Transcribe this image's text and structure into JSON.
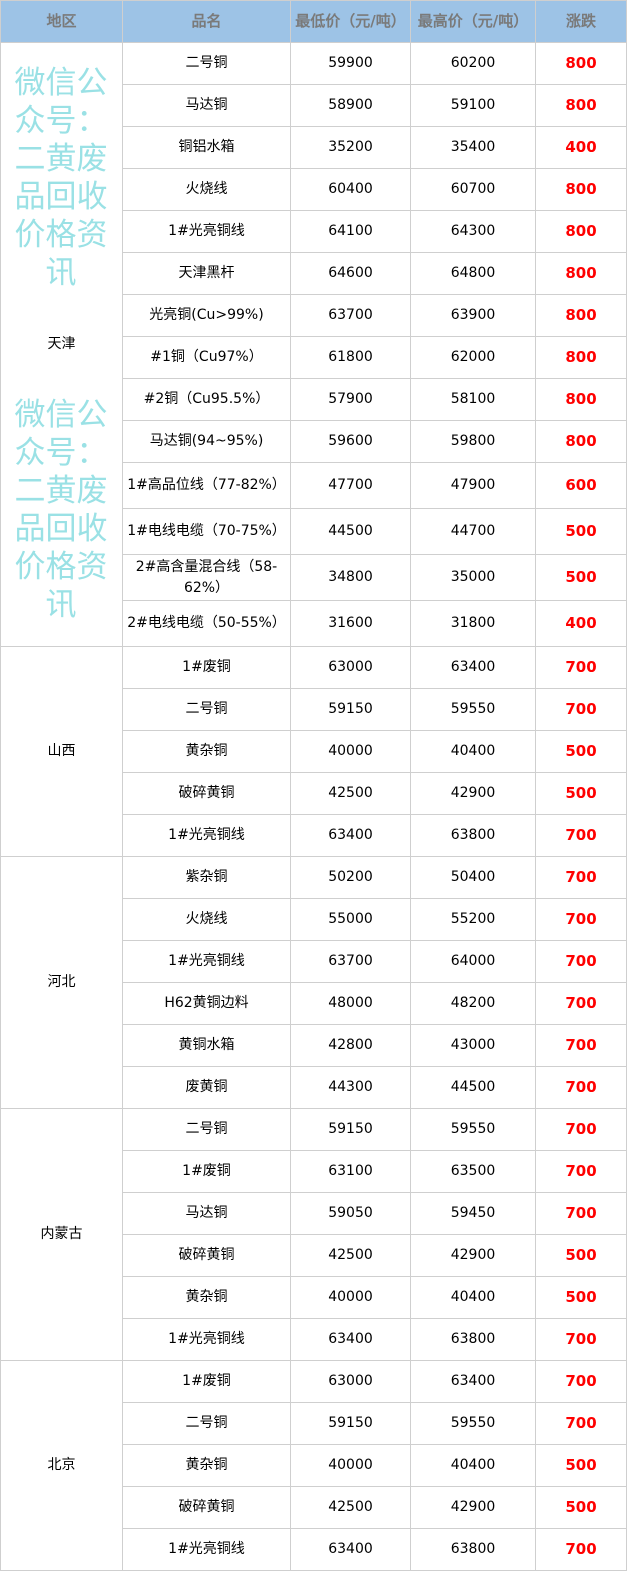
{
  "header": {
    "region": "地区",
    "name": "品名",
    "low": "最低价（元/吨）",
    "high": "最高价（元/吨）",
    "change": "涨跌"
  },
  "watermark": "微信公众号：二黄废品回收价格资讯",
  "colors": {
    "header_bg": "#9dc3e6",
    "change": "#ff0000",
    "watermark": "#78d7dc"
  },
  "regions": [
    {
      "name": "天津",
      "rows": [
        {
          "name": "二号铜",
          "low": "59900",
          "high": "60200",
          "change": "800"
        },
        {
          "name": "马达铜",
          "low": "58900",
          "high": "59100",
          "change": "800"
        },
        {
          "name": "铜铝水箱",
          "low": "35200",
          "high": "35400",
          "change": "400"
        },
        {
          "name": "火烧线",
          "low": "60400",
          "high": "60700",
          "change": "800"
        },
        {
          "name": "1#光亮铜线",
          "low": "64100",
          "high": "64300",
          "change": "800"
        },
        {
          "name": "天津黑杆",
          "low": "64600",
          "high": "64800",
          "change": "800"
        },
        {
          "name": "光亮铜(Cu>99%)",
          "low": "63700",
          "high": "63900",
          "change": "800"
        },
        {
          "name": "#1铜（Cu97%）",
          "low": "61800",
          "high": "62000",
          "change": "800"
        },
        {
          "name": "#2铜（Cu95.5%）",
          "low": "57900",
          "high": "58100",
          "change": "800"
        },
        {
          "name": "马达铜(94~95%)",
          "low": "59600",
          "high": "59800",
          "change": "800"
        },
        {
          "name": "1#高品位线（77-82%）",
          "low": "47700",
          "high": "47900",
          "change": "600"
        },
        {
          "name": "1#电线电缆（70-75%）",
          "low": "44500",
          "high": "44700",
          "change": "500"
        },
        {
          "name": "2#高含量混合线（58-62%）",
          "low": "34800",
          "high": "35000",
          "change": "500"
        },
        {
          "name": "2#电线电缆（50-55%）",
          "low": "31600",
          "high": "31800",
          "change": "400"
        }
      ]
    },
    {
      "name": "山西",
      "rows": [
        {
          "name": "1#废铜",
          "low": "63000",
          "high": "63400",
          "change": "700"
        },
        {
          "name": "二号铜",
          "low": "59150",
          "high": "59550",
          "change": "700"
        },
        {
          "name": "黄杂铜",
          "low": "40000",
          "high": "40400",
          "change": "500"
        },
        {
          "name": "破碎黄铜",
          "low": "42500",
          "high": "42900",
          "change": "500"
        },
        {
          "name": "1#光亮铜线",
          "low": "63400",
          "high": "63800",
          "change": "700"
        }
      ]
    },
    {
      "name": "河北",
      "rows": [
        {
          "name": "紫杂铜",
          "low": "50200",
          "high": "50400",
          "change": "700"
        },
        {
          "name": "火烧线",
          "low": "55000",
          "high": "55200",
          "change": "700"
        },
        {
          "name": "1#光亮铜线",
          "low": "63700",
          "high": "64000",
          "change": "700"
        },
        {
          "name": "H62黄铜边料",
          "low": "48000",
          "high": "48200",
          "change": "700"
        },
        {
          "name": "黄铜水箱",
          "low": "42800",
          "high": "43000",
          "change": "700"
        },
        {
          "name": "废黄铜",
          "low": "44300",
          "high": "44500",
          "change": "700"
        }
      ]
    },
    {
      "name": "内蒙古",
      "rows": [
        {
          "name": "二号铜",
          "low": "59150",
          "high": "59550",
          "change": "700"
        },
        {
          "name": "1#废铜",
          "low": "63100",
          "high": "63500",
          "change": "700"
        },
        {
          "name": "马达铜",
          "low": "59050",
          "high": "59450",
          "change": "700"
        },
        {
          "name": "破碎黄铜",
          "low": "42500",
          "high": "42900",
          "change": "500"
        },
        {
          "name": "黄杂铜",
          "low": "40000",
          "high": "40400",
          "change": "500"
        },
        {
          "name": "1#光亮铜线",
          "low": "63400",
          "high": "63800",
          "change": "700"
        }
      ]
    },
    {
      "name": "北京",
      "rows": [
        {
          "name": "1#废铜",
          "low": "63000",
          "high": "63400",
          "change": "700"
        },
        {
          "name": "二号铜",
          "low": "59150",
          "high": "59550",
          "change": "700"
        },
        {
          "name": "黄杂铜",
          "low": "40000",
          "high": "40400",
          "change": "500"
        },
        {
          "name": "破碎黄铜",
          "low": "42500",
          "high": "42900",
          "change": "500"
        },
        {
          "name": "1#光亮铜线",
          "low": "63400",
          "high": "63800",
          "change": "700"
        }
      ]
    }
  ]
}
